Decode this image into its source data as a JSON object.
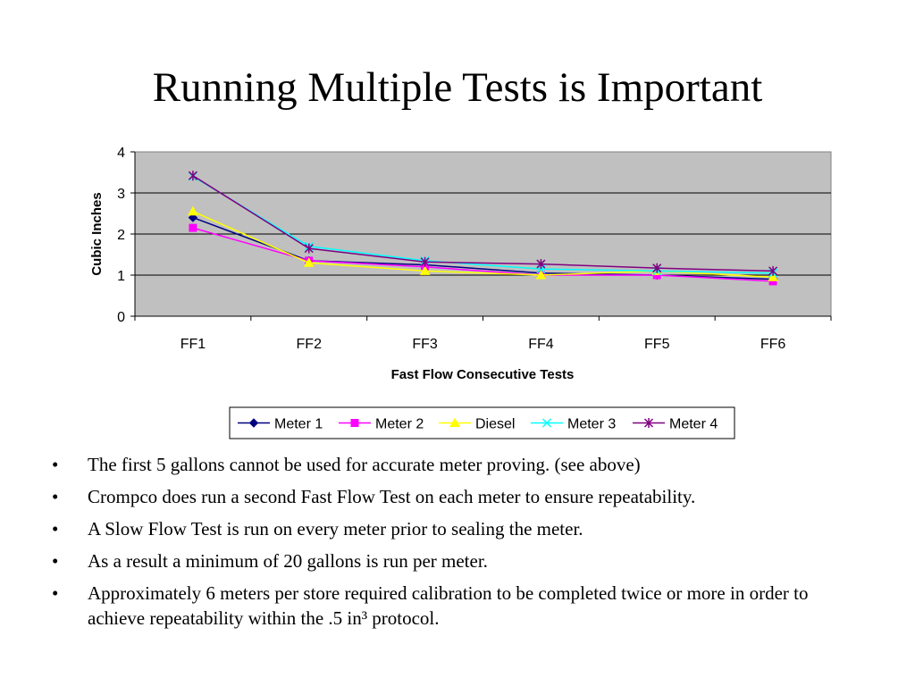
{
  "slide": {
    "title": "Running Multiple Tests is Important"
  },
  "chart_data": {
    "type": "line",
    "categories": [
      "FF1",
      "FF2",
      "FF3",
      "FF4",
      "FF5",
      "FF6"
    ],
    "xlabel": "Fast Flow Consecutive Tests",
    "ylabel": "Cubic Inches",
    "ylim": [
      0,
      4
    ],
    "yticks": [
      0,
      1,
      2,
      3,
      4
    ],
    "grid": true,
    "plot_background": "#c0c0c0",
    "legend_position": "bottom",
    "series": [
      {
        "name": "Meter 1",
        "color": "#000080",
        "marker": "diamond",
        "values": [
          2.4,
          1.35,
          1.25,
          1.05,
          1.0,
          0.9
        ]
      },
      {
        "name": "Meter 2",
        "color": "#ff00ff",
        "marker": "square",
        "values": [
          2.15,
          1.35,
          1.2,
          1.0,
          1.0,
          0.85
        ]
      },
      {
        "name": "Diesel",
        "color": "#ffff00",
        "marker": "triangle",
        "values": [
          2.55,
          1.3,
          1.1,
          1.0,
          1.1,
          0.95
        ]
      },
      {
        "name": "Meter 3",
        "color": "#00ffff",
        "marker": "x",
        "values": [
          3.4,
          1.7,
          1.35,
          1.15,
          1.1,
          1.05
        ]
      },
      {
        "name": "Meter 4",
        "color": "#800080",
        "marker": "asterisk",
        "values": [
          3.42,
          1.65,
          1.32,
          1.27,
          1.17,
          1.1
        ]
      }
    ]
  },
  "bullets": [
    {
      "mark": "•",
      "text": "The first 5 gallons cannot be used for accurate meter proving. (see above)"
    },
    {
      "mark": "•",
      "text": "Crompco does run a second Fast Flow Test on each meter to ensure repeatability."
    },
    {
      "mark": "•",
      "text": "A Slow Flow Test is run on every meter prior to sealing the meter."
    },
    {
      "mark": "•",
      "text": "As a result a minimum of 20 gallons is run per meter."
    },
    {
      "mark": "•",
      "text": "Approximately 6 meters per store required calibration to be completed twice or more in order to achieve repeatability within the .5 in³ protocol."
    }
  ]
}
